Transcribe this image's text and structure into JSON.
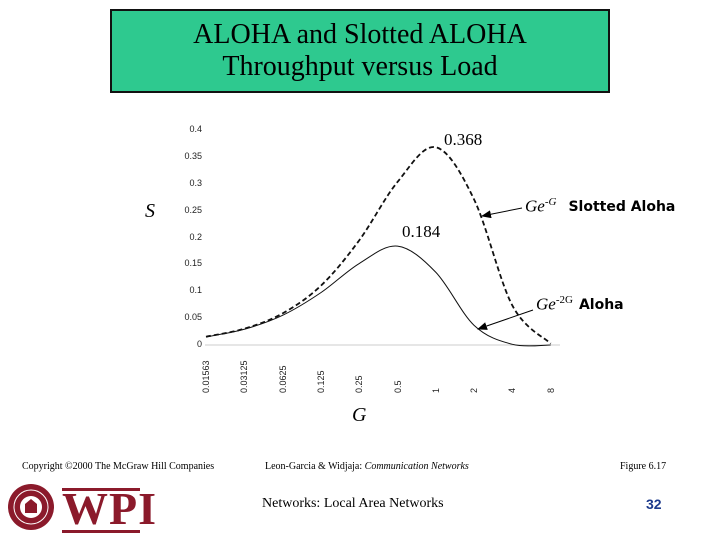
{
  "title": {
    "line1": "ALOHA and Slotted ALOHA",
    "line2": "Throughput versus Load"
  },
  "chart_data": {
    "type": "line",
    "xlabel": "G",
    "ylabel": "S",
    "x_scale": "log2",
    "x": [
      0.01563,
      0.03125,
      0.0625,
      0.125,
      0.25,
      0.5,
      1,
      2,
      4,
      8
    ],
    "x_tick_labels": [
      "0.01563",
      "0.03125",
      "0.0625",
      "0.125",
      "0.25",
      "0.5",
      "1",
      "2",
      "4",
      "8"
    ],
    "y_tick_labels": [
      "0",
      "0.05",
      "0.1",
      "0.15",
      "0.2",
      "0.25",
      "0.3",
      "0.35",
      "0.4"
    ],
    "ylim": [
      0,
      0.4
    ],
    "series": [
      {
        "name": "Slotted Aloha",
        "formula": "Ge-G",
        "style": "dashed",
        "values": [
          0.0154,
          0.0303,
          0.0588,
          0.1103,
          0.1947,
          0.3033,
          0.3679,
          0.2707,
          0.0733,
          0.0027
        ]
      },
      {
        "name": "Aloha",
        "formula": "Ge-2G",
        "style": "solid",
        "values": [
          0.0151,
          0.0293,
          0.0552,
          0.0974,
          0.1516,
          0.1839,
          0.1353,
          0.0366,
          0.0013,
          0.0
        ]
      }
    ],
    "annotations": {
      "peak_slotted": "0.368",
      "peak_aloha": "0.184",
      "slotted_formula_base": "Ge",
      "slotted_formula_exp": "-G",
      "slotted_name": "Slotted Aloha",
      "aloha_formula_base": "Ge",
      "aloha_formula_exp": "-2G",
      "aloha_name": "Aloha"
    },
    "colors": {
      "slotted": "#111111",
      "aloha": "#111111"
    }
  },
  "footer": {
    "copyright": "Copyright ©2000 The McGraw Hill Companies",
    "authors": "Leon-Garcia & Widjaja:",
    "book": "Communication Networks",
    "figure": "Figure 6.17",
    "course": "Networks: Local Area Networks",
    "page": "32",
    "logo_text": "WPI"
  }
}
